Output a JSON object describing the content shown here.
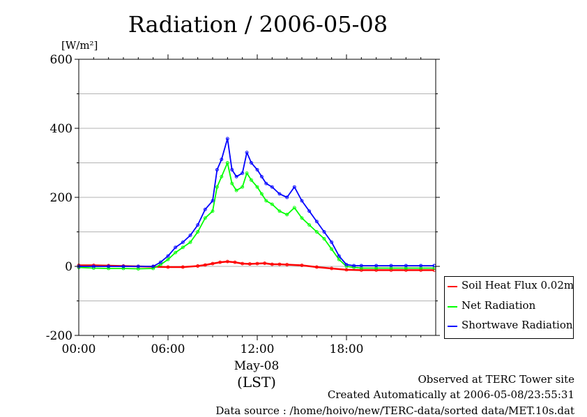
{
  "page": {
    "title": "Radiation / 2006-05-08",
    "unit_label": "[W/m²]",
    "footer": {
      "line1": "Observed at TERC Tower site",
      "line2": "Created Automatically at 2006-05-08/23:55:31",
      "line3": "Data source : /home/hoivo/new/TERC-data/sorted  data/MET.10s.dat"
    }
  },
  "chart_data": {
    "type": "line",
    "title": "Radiation / 2006-05-08",
    "ylabel": "[W/m²]",
    "xlabel": "(LST)",
    "x_date_label": "May-08",
    "ylim": [
      -200,
      600
    ],
    "xlim": [
      0,
      24
    ],
    "y_ticks": [
      -200,
      0,
      200,
      400,
      600
    ],
    "y_tick_labels": [
      "-200",
      "0",
      "200",
      "400",
      "600"
    ],
    "x_ticks": [
      0,
      6,
      12,
      18
    ],
    "x_tick_labels": [
      "00:00",
      "06:00",
      "12:00",
      "18:00"
    ],
    "grid": true,
    "legend_position": "right, below plot",
    "series": [
      {
        "name": "Soil Heat Flux 0.02m",
        "color": "#ff0000",
        "x": [
          0,
          1,
          2,
          3,
          4,
          5,
          6,
          7,
          8,
          8.5,
          9,
          9.5,
          10,
          10.5,
          11,
          11.5,
          12,
          12.5,
          13,
          13.5,
          14,
          15,
          16,
          17,
          18,
          19,
          20,
          21,
          22,
          23,
          23.9
        ],
        "y": [
          3,
          3,
          2,
          1,
          0,
          -1,
          -2,
          -2,
          1,
          4,
          8,
          12,
          14,
          12,
          8,
          7,
          8,
          9,
          6,
          6,
          5,
          3,
          -2,
          -6,
          -10,
          -11,
          -11,
          -11,
          -11,
          -11,
          -11
        ]
      },
      {
        "name": "Net Radiation",
        "color": "#00ff00",
        "x": [
          0,
          1,
          2,
          3,
          4,
          5,
          5.5,
          6,
          6.5,
          7,
          7.5,
          8,
          8.5,
          9,
          9.3,
          9.6,
          10,
          10.3,
          10.6,
          11,
          11.3,
          11.6,
          12,
          12.3,
          12.6,
          13,
          13.5,
          14,
          14.5,
          15,
          15.5,
          16,
          16.5,
          17,
          17.5,
          18,
          18.5,
          19,
          20,
          21,
          22,
          23,
          23.9
        ],
        "y": [
          -3,
          -5,
          -6,
          -6,
          -7,
          -6,
          5,
          20,
          40,
          55,
          70,
          100,
          140,
          160,
          230,
          260,
          300,
          240,
          220,
          230,
          270,
          250,
          230,
          210,
          190,
          180,
          160,
          150,
          170,
          140,
          120,
          100,
          80,
          50,
          20,
          0,
          -3,
          -5,
          -5,
          -5,
          -5,
          -5,
          -5
        ]
      },
      {
        "name": "Shortwave Radiation",
        "color": "#0000ff",
        "x": [
          0,
          1,
          2,
          3,
          4,
          5,
          5.5,
          6,
          6.5,
          7,
          7.5,
          8,
          8.5,
          9,
          9.3,
          9.6,
          10,
          10.3,
          10.6,
          11,
          11.3,
          11.6,
          12,
          12.3,
          12.6,
          13,
          13.5,
          14,
          14.5,
          15,
          15.5,
          16,
          16.5,
          17,
          17.5,
          18,
          18.5,
          19,
          20,
          21,
          22,
          23,
          23.9
        ],
        "y": [
          0,
          0,
          0,
          0,
          0,
          0,
          12,
          30,
          55,
          70,
          90,
          120,
          165,
          190,
          280,
          310,
          370,
          280,
          260,
          270,
          330,
          300,
          280,
          260,
          240,
          230,
          210,
          200,
          230,
          190,
          160,
          130,
          100,
          70,
          30,
          5,
          2,
          2,
          2,
          2,
          2,
          2,
          2
        ]
      }
    ]
  }
}
